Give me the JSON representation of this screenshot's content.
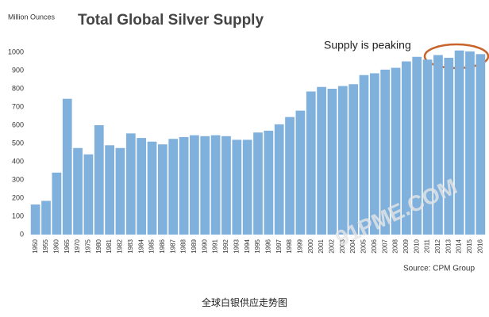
{
  "chart_data": {
    "type": "bar",
    "title": "Total Global Silver Supply",
    "y_label": "Million Ounces",
    "annotation": "Supply is peaking",
    "source": "Source: CPM Group",
    "caption": "全球白银供应走势图",
    "watermark": "91PME.COM",
    "color": "#80b0dc",
    "categories": [
      "1950",
      "1955",
      "1960",
      "1965",
      "1970",
      "1975",
      "1980",
      "1981",
      "1982",
      "1983",
      "1984",
      "1985",
      "1986",
      "1987",
      "1988",
      "1989",
      "1990",
      "1991",
      "1992",
      "1993",
      "1994",
      "1995",
      "1996",
      "1997",
      "1998",
      "1999",
      "2000",
      "2001",
      "2002",
      "2003",
      "2004",
      "2005",
      "2006",
      "2007",
      "2008",
      "2009",
      "2010",
      "2011",
      "2012",
      "2013",
      "2014",
      "2015",
      "2016"
    ],
    "values": [
      165,
      185,
      340,
      745,
      475,
      440,
      600,
      490,
      475,
      555,
      530,
      510,
      495,
      525,
      535,
      545,
      540,
      545,
      540,
      520,
      520,
      560,
      570,
      605,
      645,
      680,
      785,
      810,
      800,
      815,
      825,
      875,
      885,
      905,
      915,
      950,
      975,
      960,
      985,
      970,
      1010,
      1005,
      990
    ],
    "ylim": [
      0,
      1050
    ],
    "yticks": [
      0,
      100,
      200,
      300,
      400,
      500,
      600,
      700,
      800,
      900,
      1000
    ]
  }
}
